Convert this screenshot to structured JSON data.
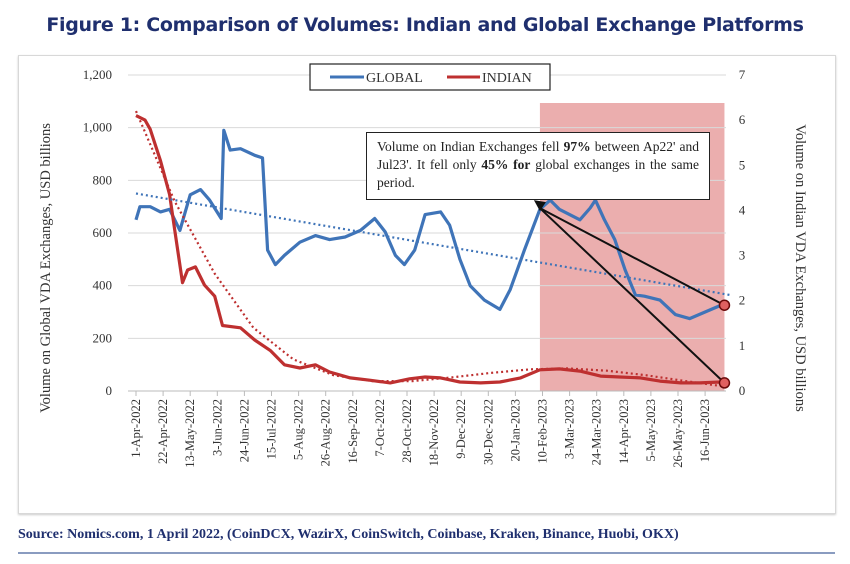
{
  "title": "Figure 1: Comparison of Volumes: Indian and Global Exchange Platforms",
  "source": "Source: Nomics.com, 1 April 2022, (CoinDCX, WazirX, CoinSwitch, Coinbase, Kraken, Binance, Huobi, OKX)",
  "annotation": {
    "part1": "Volume on Indian Exchanges fell ",
    "bold1": "97%",
    "part2": " between Ap22' and Jul23'. It fell only ",
    "bold2": "45% for",
    "part3": " global exchanges in the same period."
  },
  "colors": {
    "global": "#3f74b8",
    "indian": "#be3030",
    "highlight": "#e8a0a0",
    "title": "#1f2f6e"
  },
  "chart_data": {
    "type": "line",
    "ylabel": "Volume on Global VDA Exchanges, USD billions",
    "y2label": "Volume on Indian VDA Exchanges, USD billions",
    "ylim": [
      0,
      1200
    ],
    "yticks": [
      "0",
      "200",
      "400",
      "600",
      "800",
      "1,000",
      "1,200"
    ],
    "y2lim": [
      0,
      7
    ],
    "y2ticks": [
      "0",
      "1",
      "2",
      "3",
      "4",
      "5",
      "6",
      "7"
    ],
    "xticks": [
      "1-Apr-2022",
      "22-Apr-2022",
      "13-May-2022",
      "3-Jun-2022",
      "24-Jun-2022",
      "15-Jul-2022",
      "5-Aug-2022",
      "26-Aug-2022",
      "16-Sep-2022",
      "7-Oct-2022",
      "28-Oct-2022",
      "18-Nov-2022",
      "9-Dec-2022",
      "30-Dec-2022",
      "20-Jan-2023",
      "10-Feb-2023",
      "3-Mar-2023",
      "24-Mar-2023",
      "14-Apr-2023",
      "5-May-2023",
      "26-May-2023",
      "16-Jun-2023"
    ],
    "grid": true,
    "legend": "top-center",
    "highlight_range": [
      "2023-02-08",
      "2023-07-01"
    ],
    "series": [
      {
        "name": "GLOBAL",
        "axis": "left",
        "points": [
          [
            "2022-04-01",
            650
          ],
          [
            "2022-04-04",
            700
          ],
          [
            "2022-04-12",
            700
          ],
          [
            "2022-04-20",
            680
          ],
          [
            "2022-04-27",
            690
          ],
          [
            "2022-05-05",
            610
          ],
          [
            "2022-05-13",
            745
          ],
          [
            "2022-05-21",
            765
          ],
          [
            "2022-05-28",
            725
          ],
          [
            "2022-06-06",
            655
          ],
          [
            "2022-06-08",
            990
          ],
          [
            "2022-06-13",
            915
          ],
          [
            "2022-06-21",
            920
          ],
          [
            "2022-07-02",
            895
          ],
          [
            "2022-07-08",
            885
          ],
          [
            "2022-07-12",
            535
          ],
          [
            "2022-07-18",
            480
          ],
          [
            "2022-07-25",
            515
          ],
          [
            "2022-08-06",
            565
          ],
          [
            "2022-08-18",
            590
          ],
          [
            "2022-08-29",
            575
          ],
          [
            "2022-09-10",
            585
          ],
          [
            "2022-09-22",
            610
          ],
          [
            "2022-10-03",
            655
          ],
          [
            "2022-10-11",
            605
          ],
          [
            "2022-10-19",
            515
          ],
          [
            "2022-10-26",
            480
          ],
          [
            "2022-11-03",
            535
          ],
          [
            "2022-11-11",
            670
          ],
          [
            "2022-11-23",
            680
          ],
          [
            "2022-11-30",
            630
          ],
          [
            "2022-12-08",
            500
          ],
          [
            "2022-12-16",
            400
          ],
          [
            "2022-12-27",
            345
          ],
          [
            "2023-01-08",
            310
          ],
          [
            "2023-01-16",
            385
          ],
          [
            "2023-01-27",
            535
          ],
          [
            "2023-02-08",
            690
          ],
          [
            "2023-02-16",
            725
          ],
          [
            "2023-02-23",
            690
          ],
          [
            "2023-03-03",
            670
          ],
          [
            "2023-03-11",
            650
          ],
          [
            "2023-03-19",
            695
          ],
          [
            "2023-03-23",
            725
          ],
          [
            "2023-03-30",
            650
          ],
          [
            "2023-04-07",
            575
          ],
          [
            "2023-04-15",
            460
          ],
          [
            "2023-04-23",
            365
          ],
          [
            "2023-04-30",
            360
          ],
          [
            "2023-05-12",
            345
          ],
          [
            "2023-05-24",
            290
          ],
          [
            "2023-06-04",
            275
          ],
          [
            "2023-06-16",
            300
          ],
          [
            "2023-06-28",
            325
          ]
        ]
      },
      {
        "name": "INDIAN",
        "axis": "right",
        "points": [
          [
            "2022-04-01",
            6.1
          ],
          [
            "2022-04-08",
            6.0
          ],
          [
            "2022-04-12",
            5.8
          ],
          [
            "2022-04-20",
            5.1
          ],
          [
            "2022-04-27",
            4.35
          ],
          [
            "2022-05-01",
            3.57
          ],
          [
            "2022-05-07",
            2.4
          ],
          [
            "2022-05-11",
            2.68
          ],
          [
            "2022-05-17",
            2.75
          ],
          [
            "2022-05-24",
            2.35
          ],
          [
            "2022-06-01",
            2.1
          ],
          [
            "2022-06-07",
            1.45
          ],
          [
            "2022-06-21",
            1.4
          ],
          [
            "2022-07-02",
            1.13
          ],
          [
            "2022-07-14",
            0.9
          ],
          [
            "2022-07-25",
            0.58
          ],
          [
            "2022-08-06",
            0.51
          ],
          [
            "2022-08-18",
            0.58
          ],
          [
            "2022-08-29",
            0.42
          ],
          [
            "2022-09-14",
            0.29
          ],
          [
            "2022-09-29",
            0.24
          ],
          [
            "2022-10-15",
            0.18
          ],
          [
            "2022-10-30",
            0.27
          ],
          [
            "2022-11-11",
            0.31
          ],
          [
            "2022-11-23",
            0.29
          ],
          [
            "2022-12-08",
            0.2
          ],
          [
            "2022-12-24",
            0.18
          ],
          [
            "2023-01-08",
            0.2
          ],
          [
            "2023-01-24",
            0.29
          ],
          [
            "2023-02-08",
            0.47
          ],
          [
            "2023-02-23",
            0.49
          ],
          [
            "2023-03-11",
            0.44
          ],
          [
            "2023-03-27",
            0.33
          ],
          [
            "2023-04-11",
            0.31
          ],
          [
            "2023-04-27",
            0.29
          ],
          [
            "2023-05-12",
            0.22
          ],
          [
            "2023-05-28",
            0.18
          ],
          [
            "2023-06-12",
            0.18
          ],
          [
            "2023-06-28",
            0.2
          ]
        ]
      },
      {
        "axis": "left",
        "style": "dotted-trend",
        "color": "global",
        "points": [
          [
            "2022-04-01",
            750
          ],
          [
            "2023-07-05",
            365
          ]
        ]
      },
      {
        "axis": "right",
        "style": "dotted-trend",
        "color": "indian",
        "points": [
          [
            "2022-04-01",
            6.2
          ],
          [
            "2022-05-01",
            4.2
          ],
          [
            "2022-06-01",
            2.6
          ],
          [
            "2022-07-01",
            1.4
          ],
          [
            "2022-08-01",
            0.7
          ],
          [
            "2022-09-01",
            0.35
          ],
          [
            "2022-10-01",
            0.22
          ],
          [
            "2022-11-01",
            0.22
          ],
          [
            "2022-12-01",
            0.3
          ],
          [
            "2023-01-01",
            0.4
          ],
          [
            "2023-02-01",
            0.48
          ],
          [
            "2023-03-01",
            0.5
          ],
          [
            "2023-04-01",
            0.45
          ],
          [
            "2023-05-01",
            0.35
          ],
          [
            "2023-06-01",
            0.22
          ],
          [
            "2023-07-01",
            0.1
          ]
        ]
      }
    ],
    "arrows": [
      {
        "from": [
          "2023-02-08",
          4.05
        ],
        "to": [
          "2023-07-01",
          1.9
        ]
      },
      {
        "from": [
          "2023-02-08",
          4.05
        ],
        "to": [
          "2023-07-01",
          0.18
        ]
      }
    ]
  }
}
